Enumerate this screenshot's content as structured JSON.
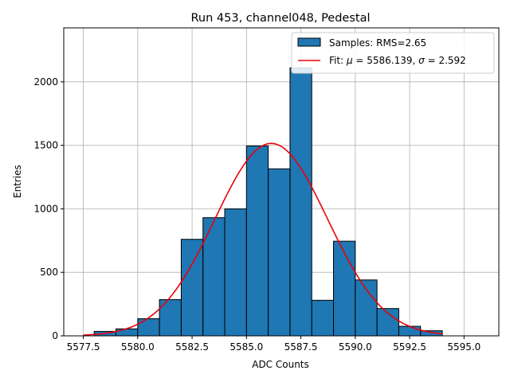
{
  "chart_data": {
    "type": "bar",
    "title": "Run 453, channel048, Pedestal",
    "xlabel": "ADC Counts",
    "ylabel": "Entries",
    "xlim": [
      5576.6,
      5596.6
    ],
    "ylim": [
      0,
      2425
    ],
    "grid": true,
    "legend_position": "top-right",
    "xticks": [
      5577.5,
      5580.0,
      5582.5,
      5585.0,
      5587.5,
      5590.0,
      5592.5,
      5595.0
    ],
    "xtick_labels": [
      "5577.5",
      "5580.0",
      "5582.5",
      "5585.0",
      "5587.5",
      "5590.0",
      "5592.5",
      "5595.0"
    ],
    "yticks": [
      0,
      500,
      1000,
      1500,
      2000
    ],
    "ytick_labels": [
      "0",
      "500",
      "1000",
      "1500",
      "2000"
    ],
    "histogram": {
      "name": "Samples: RMS=2.65",
      "color": "#1f77b4",
      "edge_color": "#000000",
      "bin_edges": [
        5578,
        5579,
        5580,
        5581,
        5582,
        5583,
        5584,
        5585,
        5586,
        5587,
        5588,
        5589,
        5590,
        5591,
        5592,
        5593,
        5594
      ],
      "counts": [
        35,
        55,
        135,
        285,
        760,
        930,
        1000,
        1495,
        1315,
        2110,
        280,
        745,
        440,
        215,
        75,
        40
      ]
    },
    "fit": {
      "name": "Fit: μ = 5586.139, σ = 2.592",
      "label_prefix": "Fit: ",
      "mu_symbol": "μ",
      "mu_text": " = 5586.139, ",
      "sigma_symbol": "σ",
      "sigma_text": " = 2.592",
      "color": "#e8000b",
      "mu": 5586.139,
      "sigma": 2.592,
      "amplitude": 1515,
      "x_range": [
        5577.5,
        5594
      ]
    }
  }
}
